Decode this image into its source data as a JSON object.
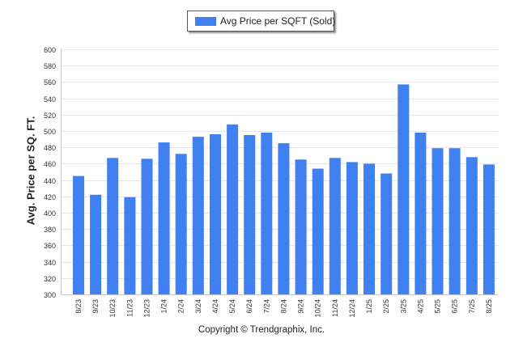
{
  "chart_data": {
    "type": "bar",
    "categories": [
      "8/23",
      "9/23",
      "10/23",
      "11/23",
      "12/23",
      "1/24",
      "2/24",
      "3/24",
      "4/24",
      "5/24",
      "6/24",
      "7/24",
      "8/24",
      "9/24",
      "10/24",
      "11/24",
      "12/24",
      "1/25",
      "2/25",
      "3/25",
      "4/25",
      "5/25",
      "6/25",
      "7/25",
      "8/25"
    ],
    "series": [
      {
        "name": "Avg Price per SQFT (Sold)",
        "values": [
          445,
          422,
          467,
          419,
          466,
          486,
          472,
          493,
          496,
          508,
          495,
          498,
          485,
          465,
          454,
          467,
          462,
          460,
          448,
          557,
          498,
          479,
          479,
          468,
          459
        ]
      }
    ],
    "title": "",
    "xlabel": "",
    "ylabel": "Avg. Price per SQ. FT.",
    "ylim": [
      300,
      600
    ],
    "yticks": [
      300,
      320,
      340,
      360,
      380,
      400,
      420,
      440,
      460,
      480,
      500,
      520,
      540,
      560,
      580,
      600
    ],
    "grid": true,
    "legend_position": "top-center",
    "bar_color": "#4080f0"
  },
  "footer": {
    "copyright": "Copyright © Trendgraphix, Inc."
  }
}
